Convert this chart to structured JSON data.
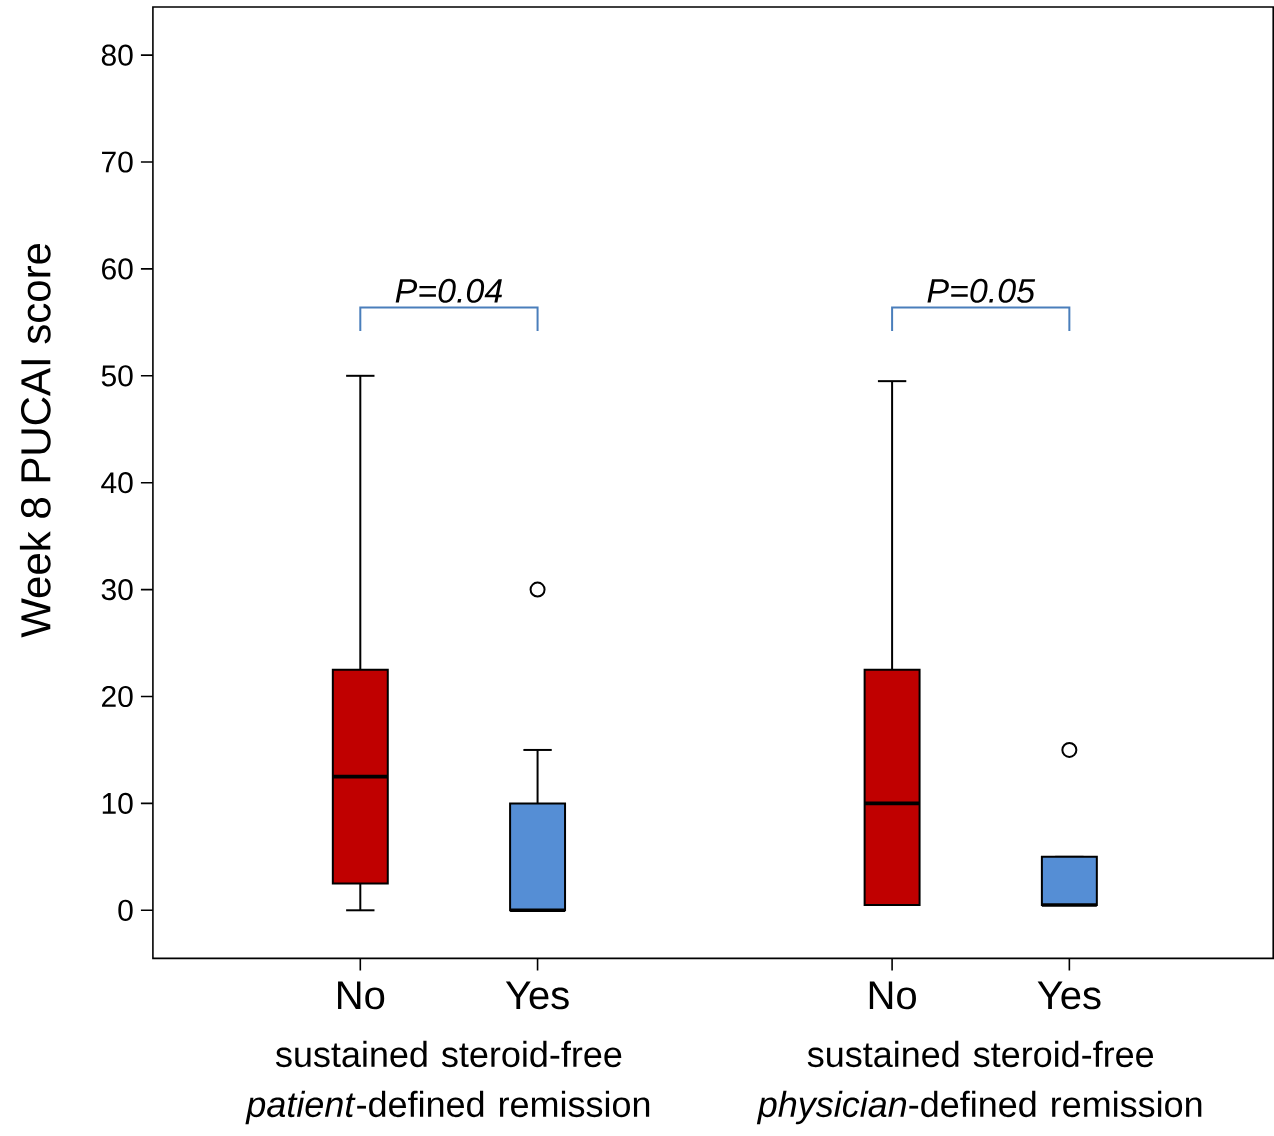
{
  "chart_data": {
    "type": "box",
    "ylabel": "Week 8 PUCAI score",
    "categories": [
      "No",
      "Yes",
      null,
      "No",
      "Yes"
    ],
    "colors": [
      "#c00000",
      "#558ed5",
      null,
      "#c00000",
      "#558ed5"
    ],
    "boxes": [
      {
        "low": 0,
        "q1": 2.5,
        "median": 12.5,
        "q3": 22.5,
        "high": 50
      },
      {
        "low": 0,
        "q1": 0,
        "median": 0,
        "q3": 10,
        "high": 15,
        "outliers": [
          30
        ]
      },
      null,
      {
        "low": 0.5,
        "q1": 0.5,
        "median": 10,
        "q3": 22.5,
        "high": 49.5
      },
      {
        "low": 0.5,
        "q1": 0.5,
        "median": 0.5,
        "q3": 5,
        "high": 5,
        "outliers": [
          15
        ]
      }
    ],
    "ylim": [
      -4.5,
      84.5
    ],
    "yticks": [
      0,
      10,
      20,
      30,
      40,
      50,
      60,
      70,
      80
    ],
    "annotations": [
      "P=0.04",
      "P=0.05",
      "sustained steroid-free *patient*-defined remission",
      "sustained steroid-free *physician*-defined remission"
    ]
  }
}
